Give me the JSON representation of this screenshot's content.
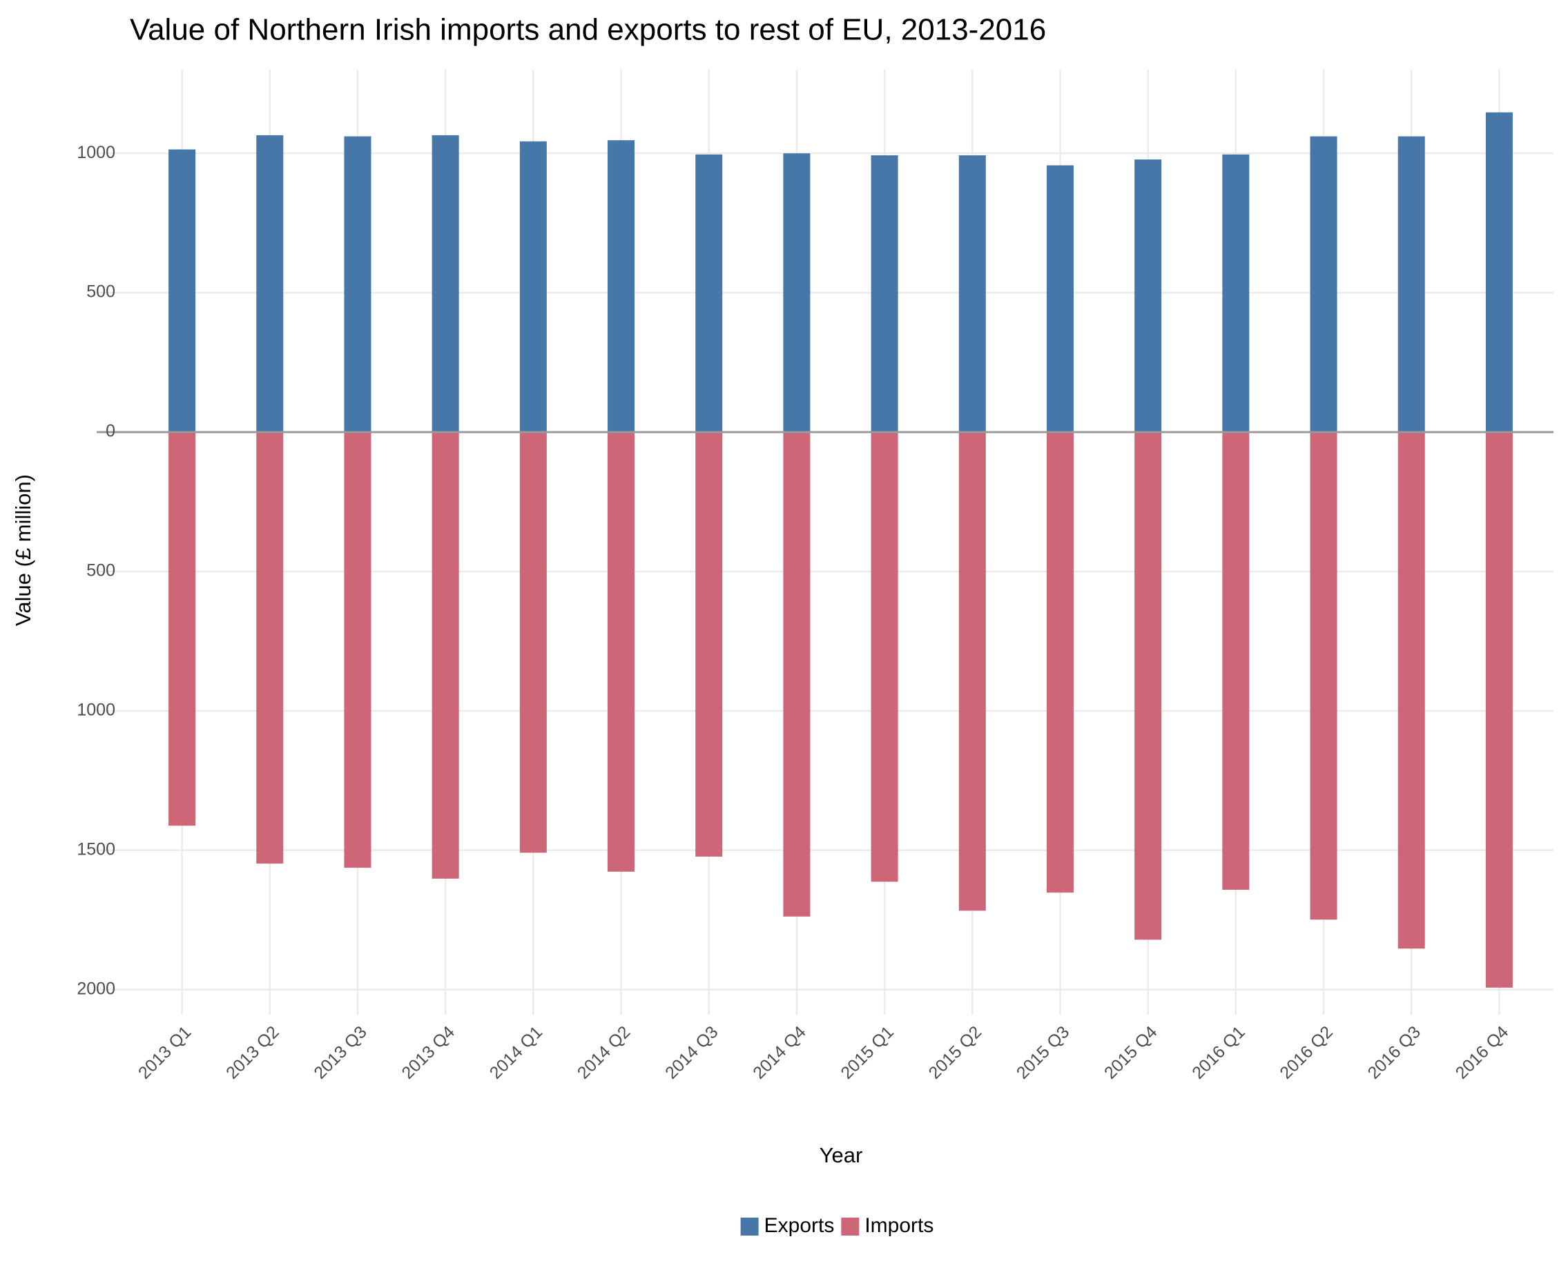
{
  "chart_data": {
    "type": "bar",
    "title": "Value of Northern Irish imports and exports to rest of EU, 2013-2016",
    "x_label": "Year",
    "y_label": "Value (£ million)",
    "categories": [
      "2013 Q1",
      "2013 Q2",
      "2013 Q3",
      "2013 Q4",
      "2014 Q1",
      "2014 Q2",
      "2014 Q3",
      "2014 Q4",
      "2015 Q1",
      "2015 Q2",
      "2015 Q3",
      "2015 Q4",
      "2016 Q1",
      "2016 Q2",
      "2016 Q3",
      "2016 Q4"
    ],
    "series": [
      {
        "name": "Exports",
        "color": "#4677a8",
        "values": [
          1014,
          1065,
          1061,
          1065,
          1043,
          1047,
          996,
          1000,
          993,
          993,
          957,
          978,
          996,
          1061,
          1061,
          1147
        ]
      },
      {
        "name": "Imports",
        "color": "#cd6677",
        "values": [
          -1412,
          -1548,
          -1563,
          -1602,
          -1509,
          -1577,
          -1523,
          -1738,
          -1613,
          -1717,
          -1652,
          -1821,
          -1642,
          -1749,
          -1853,
          -1993
        ]
      }
    ],
    "ylim": [
      -2090,
      1300
    ],
    "yticks": [
      {
        "value": -2000,
        "label": "2000"
      },
      {
        "value": -1500,
        "label": "1500"
      },
      {
        "value": -1000,
        "label": "1000"
      },
      {
        "value": -500,
        "label": "500"
      },
      0,
      500,
      1000
    ],
    "grid": true,
    "legend": "bottom"
  }
}
